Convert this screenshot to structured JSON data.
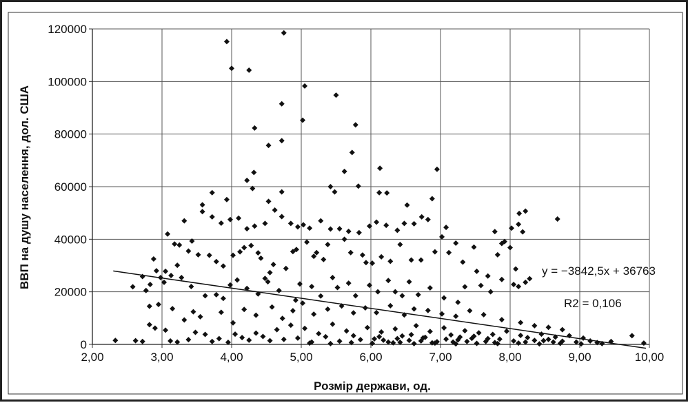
{
  "chart_data": {
    "type": "scatter",
    "title": "",
    "xlabel": "Розмір держави, од.",
    "ylabel": "ВВП на душу населення, дол. США",
    "xlim": [
      2,
      10
    ],
    "ylim": [
      0,
      120000
    ],
    "x_ticks": [
      "2,00",
      "3,00",
      "4,00",
      "5,00",
      "6,00",
      "7,00",
      "8,00",
      "9,00",
      "10,00"
    ],
    "y_ticks": [
      "0",
      "20000",
      "40000",
      "60000",
      "80000",
      "100000",
      "120000"
    ],
    "grid": true,
    "legend": "none",
    "marker": "diamond",
    "marker_color": "#111111",
    "trendline": {
      "slope": -3842.5,
      "intercept": 36763,
      "x_range": [
        2.3,
        9.95
      ],
      "equation_label": "y = −3842,5x + 36763",
      "r2_label": "R2 = 0,106"
    },
    "series": [
      {
        "points": [
          [
            4.75,
            118500
          ],
          [
            3.93,
            115200
          ],
          [
            4.0,
            105000
          ],
          [
            4.25,
            104300
          ],
          [
            5.05,
            98300
          ],
          [
            5.5,
            94800
          ],
          [
            4.72,
            91500
          ],
          [
            5.02,
            85300
          ],
          [
            5.78,
            83500
          ],
          [
            4.33,
            82300
          ],
          [
            4.53,
            75700
          ],
          [
            4.72,
            77500
          ],
          [
            5.73,
            73000
          ],
          [
            4.32,
            65400
          ],
          [
            5.62,
            65800
          ],
          [
            6.13,
            67000
          ],
          [
            6.95,
            66600
          ],
          [
            4.22,
            62400
          ],
          [
            5.82,
            60200
          ],
          [
            5.42,
            60000
          ],
          [
            4.3,
            59300
          ],
          [
            4.72,
            58000
          ],
          [
            3.72,
            57700
          ],
          [
            6.12,
            57700
          ],
          [
            6.23,
            57600
          ],
          [
            5.48,
            58000
          ],
          [
            6.88,
            55400
          ],
          [
            3.58,
            53100
          ],
          [
            3.93,
            55100
          ],
          [
            4.53,
            54400
          ],
          [
            6.52,
            53000
          ],
          [
            6.73,
            48500
          ],
          [
            8.22,
            50700
          ],
          [
            8.13,
            49800
          ],
          [
            8.68,
            47700
          ],
          [
            3.08,
            42000
          ],
          [
            3.18,
            38200
          ],
          [
            3.25,
            37800
          ],
          [
            3.43,
            39300
          ],
          [
            3.32,
            47000
          ],
          [
            3.58,
            50500
          ],
          [
            3.72,
            48500
          ],
          [
            3.85,
            46100
          ],
          [
            3.98,
            47500
          ],
          [
            4.1,
            48000
          ],
          [
            4.22,
            44000
          ],
          [
            4.33,
            45000
          ],
          [
            4.48,
            46000
          ],
          [
            4.62,
            51100
          ],
          [
            4.72,
            48600
          ],
          [
            4.85,
            46000
          ],
          [
            4.95,
            44700
          ],
          [
            5.03,
            45500
          ],
          [
            5.12,
            44200
          ],
          [
            5.28,
            47000
          ],
          [
            5.42,
            43900
          ],
          [
            5.55,
            44000
          ],
          [
            5.68,
            43000
          ],
          [
            5.83,
            42500
          ],
          [
            5.98,
            45000
          ],
          [
            6.08,
            46500
          ],
          [
            6.22,
            45300
          ],
          [
            6.38,
            43400
          ],
          [
            6.48,
            46000
          ],
          [
            6.62,
            45900
          ],
          [
            6.82,
            47500
          ],
          [
            7.02,
            40900
          ],
          [
            7.08,
            44500
          ],
          [
            7.22,
            38500
          ],
          [
            7.48,
            37000
          ],
          [
            7.78,
            42900
          ],
          [
            8.02,
            44200
          ],
          [
            8.12,
            45700
          ],
          [
            8.18,
            42800
          ],
          [
            3.05,
            27800
          ],
          [
            3.22,
            30100
          ],
          [
            3.38,
            35500
          ],
          [
            3.52,
            34100
          ],
          [
            3.68,
            33900
          ],
          [
            3.78,
            31500
          ],
          [
            3.88,
            29800
          ],
          [
            4.02,
            33900
          ],
          [
            4.12,
            35200
          ],
          [
            4.18,
            36800
          ],
          [
            4.28,
            37600
          ],
          [
            4.38,
            34800
          ],
          [
            4.42,
            32800
          ],
          [
            4.55,
            27300
          ],
          [
            4.6,
            30400
          ],
          [
            4.78,
            28900
          ],
          [
            4.88,
            35300
          ],
          [
            4.93,
            36100
          ],
          [
            5.08,
            38900
          ],
          [
            5.18,
            33500
          ],
          [
            5.22,
            34900
          ],
          [
            5.32,
            32300
          ],
          [
            5.38,
            38000
          ],
          [
            5.62,
            40000
          ],
          [
            5.71,
            34900
          ],
          [
            5.88,
            34000
          ],
          [
            5.93,
            31100
          ],
          [
            6.02,
            30900
          ],
          [
            6.15,
            33300
          ],
          [
            6.28,
            31600
          ],
          [
            6.42,
            38000
          ],
          [
            6.58,
            32100
          ],
          [
            6.72,
            32100
          ],
          [
            6.92,
            35200
          ],
          [
            7.12,
            34900
          ],
          [
            7.32,
            31300
          ],
          [
            7.52,
            27800
          ],
          [
            7.68,
            26000
          ],
          [
            7.82,
            34100
          ],
          [
            7.88,
            38400
          ],
          [
            7.92,
            39100
          ],
          [
            8.0,
            36800
          ],
          [
            8.08,
            28700
          ],
          [
            8.22,
            23600
          ],
          [
            8.28,
            25000
          ],
          [
            2.58,
            21900
          ],
          [
            2.72,
            25800
          ],
          [
            2.77,
            20500
          ],
          [
            2.83,
            22800
          ],
          [
            2.88,
            32500
          ],
          [
            2.92,
            28000
          ],
          [
            2.98,
            25400
          ],
          [
            3.03,
            23600
          ],
          [
            3.13,
            26200
          ],
          [
            3.28,
            25400
          ],
          [
            3.42,
            22000
          ],
          [
            3.62,
            18500
          ],
          [
            3.78,
            18900
          ],
          [
            3.88,
            17500
          ],
          [
            3.98,
            22600
          ],
          [
            4.08,
            24500
          ],
          [
            4.22,
            21300
          ],
          [
            4.38,
            19200
          ],
          [
            4.48,
            25100
          ],
          [
            4.52,
            23800
          ],
          [
            4.68,
            20500
          ],
          [
            4.92,
            16800
          ],
          [
            4.98,
            23000
          ],
          [
            5.15,
            22000
          ],
          [
            5.28,
            18400
          ],
          [
            5.45,
            25400
          ],
          [
            5.52,
            21600
          ],
          [
            5.68,
            23300
          ],
          [
            5.78,
            18500
          ],
          [
            5.98,
            22500
          ],
          [
            6.1,
            20000
          ],
          [
            6.25,
            24300
          ],
          [
            6.35,
            20000
          ],
          [
            6.45,
            18500
          ],
          [
            6.55,
            23800
          ],
          [
            6.68,
            18900
          ],
          [
            6.85,
            21500
          ],
          [
            7.05,
            17700
          ],
          [
            7.25,
            16000
          ],
          [
            7.35,
            21900
          ],
          [
            7.58,
            22400
          ],
          [
            7.72,
            20000
          ],
          [
            7.88,
            24700
          ],
          [
            8.05,
            22800
          ],
          [
            8.12,
            22000
          ],
          [
            2.82,
            14500
          ],
          [
            2.95,
            15200
          ],
          [
            3.15,
            13600
          ],
          [
            3.32,
            9300
          ],
          [
            3.45,
            12400
          ],
          [
            3.55,
            10500
          ],
          [
            3.85,
            12200
          ],
          [
            4.02,
            8200
          ],
          [
            4.18,
            13300
          ],
          [
            4.35,
            11100
          ],
          [
            4.58,
            14200
          ],
          [
            4.73,
            9900
          ],
          [
            4.88,
            12800
          ],
          [
            5.02,
            15700
          ],
          [
            5.18,
            11500
          ],
          [
            5.38,
            13400
          ],
          [
            5.58,
            14600
          ],
          [
            5.75,
            12000
          ],
          [
            5.92,
            13900
          ],
          [
            6.08,
            12100
          ],
          [
            6.28,
            14700
          ],
          [
            6.48,
            11200
          ],
          [
            6.62,
            13500
          ],
          [
            6.82,
            12900
          ],
          [
            7.02,
            11600
          ],
          [
            7.22,
            10700
          ],
          [
            7.42,
            12800
          ],
          [
            7.62,
            11300
          ],
          [
            7.88,
            9400
          ],
          [
            8.15,
            8300
          ],
          [
            8.35,
            7100
          ],
          [
            8.55,
            6500
          ],
          [
            8.75,
            5600
          ],
          [
            2.33,
            1500
          ],
          [
            2.62,
            1400
          ],
          [
            2.72,
            1100
          ],
          [
            2.82,
            7500
          ],
          [
            2.9,
            6200
          ],
          [
            3.05,
            5400
          ],
          [
            3.12,
            1300
          ],
          [
            3.22,
            900
          ],
          [
            3.38,
            1800
          ],
          [
            3.48,
            4600
          ],
          [
            3.62,
            3800
          ],
          [
            3.72,
            1100
          ],
          [
            3.82,
            2200
          ],
          [
            3.95,
            800
          ],
          [
            4.05,
            3900
          ],
          [
            4.15,
            2600
          ],
          [
            4.25,
            1600
          ],
          [
            4.35,
            4300
          ],
          [
            4.45,
            3000
          ],
          [
            4.55,
            1400
          ],
          [
            4.65,
            5600
          ],
          [
            4.75,
            1900
          ],
          [
            4.85,
            7300
          ],
          [
            4.95,
            2400
          ],
          [
            5.05,
            6100
          ],
          [
            5.15,
            900
          ],
          [
            5.25,
            4100
          ],
          [
            5.35,
            2900
          ],
          [
            5.45,
            7700
          ],
          [
            5.55,
            1200
          ],
          [
            5.65,
            5100
          ],
          [
            5.75,
            3300
          ],
          [
            5.85,
            1800
          ],
          [
            5.95,
            6400
          ],
          [
            6.05,
            2100
          ],
          [
            6.15,
            4700
          ],
          [
            6.25,
            900
          ],
          [
            6.35,
            5900
          ],
          [
            6.45,
            3200
          ],
          [
            6.55,
            1500
          ],
          [
            6.65,
            7100
          ],
          [
            6.75,
            2500
          ],
          [
            6.85,
            4900
          ],
          [
            6.95,
            1000
          ],
          [
            7.05,
            6300
          ],
          [
            7.15,
            3600
          ],
          [
            7.25,
            1700
          ],
          [
            7.35,
            5200
          ],
          [
            7.45,
            2300
          ],
          [
            7.55,
            4400
          ],
          [
            7.65,
            1100
          ],
          [
            7.75,
            3800
          ],
          [
            7.85,
            2000
          ],
          [
            7.95,
            5000
          ],
          [
            8.05,
            1300
          ],
          [
            8.15,
            3400
          ],
          [
            8.25,
            2600
          ],
          [
            8.35,
            1500
          ],
          [
            8.45,
            3900
          ],
          [
            8.55,
            1900
          ],
          [
            8.65,
            2800
          ],
          [
            8.75,
            1200
          ],
          [
            8.85,
            3300
          ],
          [
            8.95,
            900
          ],
          [
            9.05,
            2400
          ],
          [
            9.15,
            1300
          ],
          [
            9.25,
            700
          ],
          [
            9.45,
            1100
          ],
          [
            9.75,
            3300
          ],
          [
            9.92,
            500
          ],
          [
            5.12,
            500
          ],
          [
            5.42,
            300
          ],
          [
            5.72,
            700
          ],
          [
            6.02,
            400
          ],
          [
            6.32,
            600
          ],
          [
            6.62,
            300
          ],
          [
            6.92,
            500
          ],
          [
            7.22,
            200
          ],
          [
            7.52,
            400
          ],
          [
            7.82,
            300
          ],
          [
            8.12,
            500
          ],
          [
            8.42,
            200
          ],
          [
            8.72,
            400
          ],
          [
            9.02,
            200
          ],
          [
            9.32,
            300
          ],
          [
            6.12,
            2900
          ],
          [
            6.18,
            1600
          ],
          [
            6.38,
            2200
          ],
          [
            6.42,
            800
          ],
          [
            6.58,
            3700
          ],
          [
            6.72,
            1300
          ],
          [
            6.78,
            2700
          ],
          [
            6.88,
            600
          ],
          [
            7.08,
            2000
          ],
          [
            7.18,
            900
          ],
          [
            7.28,
            2800
          ],
          [
            7.38,
            1100
          ],
          [
            7.48,
            3100
          ],
          [
            7.68,
            2200
          ],
          [
            7.78,
            700
          ],
          [
            8.22,
            900
          ],
          [
            8.48,
            1400
          ],
          [
            8.62,
            900
          ]
        ]
      }
    ]
  }
}
